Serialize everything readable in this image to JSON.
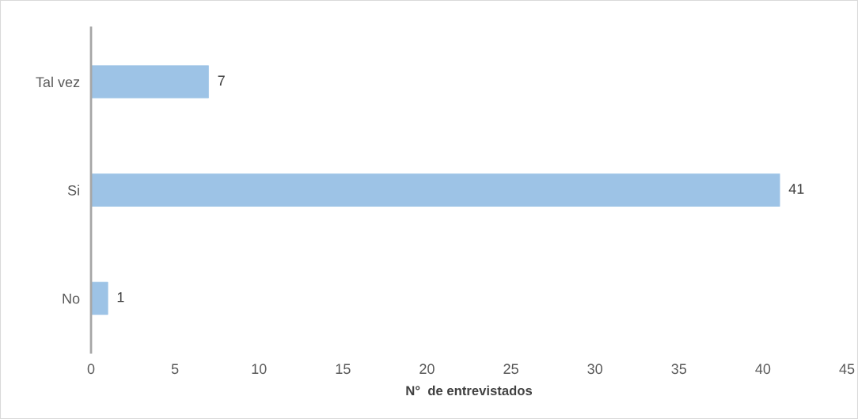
{
  "chart_data": {
    "type": "bar",
    "orientation": "horizontal",
    "categories": [
      "Tal vez",
      "Si",
      "No"
    ],
    "values": [
      7,
      41,
      1
    ],
    "color": "#9dc3e6",
    "xlabel": "N°  de entrevistados",
    "xlim": [
      0,
      45
    ],
    "xticks": [
      0,
      5,
      10,
      15,
      20,
      25,
      30,
      35,
      40,
      45
    ],
    "data_labels": true,
    "grid": false,
    "legend": false
  }
}
